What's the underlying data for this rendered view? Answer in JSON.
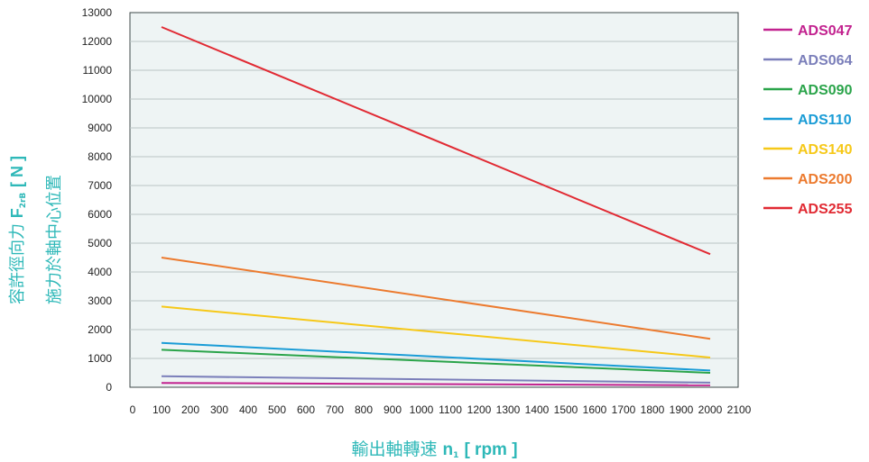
{
  "chart_data": {
    "type": "line",
    "x_ticks": [
      "0",
      "100",
      "200",
      "300",
      "400",
      "500",
      "600",
      "700",
      "800",
      "900",
      "1000",
      "1100",
      "1200",
      "1300",
      "1400",
      "1500",
      "1600",
      "1700",
      "1800",
      "1900",
      "2000",
      "2100"
    ],
    "y_ticks": [
      "0",
      "1000",
      "2000",
      "3000",
      "4000",
      "5000",
      "6000",
      "7000",
      "8000",
      "9000",
      "10000",
      "11000",
      "12000",
      "13000"
    ],
    "xlim": [
      0,
      2100
    ],
    "ylim": [
      0,
      13000
    ],
    "grid": "horizontal",
    "legend_position": "right",
    "xlabel": {
      "text": "輸出軸轉速",
      "symbol": "n",
      "sub": "1",
      "unit": "[ rpm ]"
    },
    "ylabel": {
      "line1": {
        "text": "容許徑向力",
        "symbol": "F",
        "sub": "2rB",
        "unit": "[ N ]"
      },
      "line2": "施力於軸中心位置"
    },
    "colors": {
      "plot_bg": "#eef4f4",
      "grid": "#b9c4c4",
      "frame": "#3f4a4a",
      "axis_title": "#2eb8b8"
    },
    "series": [
      {
        "name": "ADS047",
        "color": "#c2228f",
        "x": [
          100,
          2000
        ],
        "y": [
          150,
          70
        ]
      },
      {
        "name": "ADS064",
        "color": "#7b7fba",
        "x": [
          100,
          2000
        ],
        "y": [
          380,
          160
        ]
      },
      {
        "name": "ADS090",
        "color": "#2aa44a",
        "x": [
          100,
          2000
        ],
        "y": [
          1300,
          500
        ]
      },
      {
        "name": "ADS110",
        "color": "#1a9cd6",
        "x": [
          100,
          2000
        ],
        "y": [
          1540,
          580
        ]
      },
      {
        "name": "ADS140",
        "color": "#f6c818",
        "x": [
          100,
          2000
        ],
        "y": [
          2800,
          1030
        ]
      },
      {
        "name": "ADS200",
        "color": "#ec7a2e",
        "x": [
          100,
          2000
        ],
        "y": [
          4500,
          1680
        ]
      },
      {
        "name": "ADS255",
        "color": "#e12a33",
        "x": [
          100,
          2000
        ],
        "y": [
          12500,
          4620
        ]
      }
    ]
  }
}
